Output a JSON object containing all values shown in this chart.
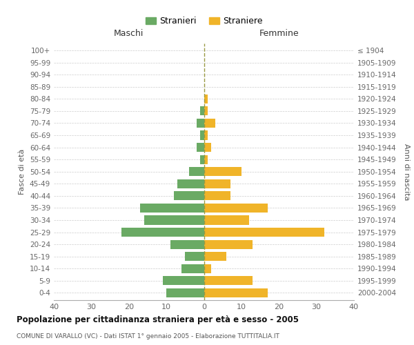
{
  "age_groups": [
    "0-4",
    "5-9",
    "10-14",
    "15-19",
    "20-24",
    "25-29",
    "30-34",
    "35-39",
    "40-44",
    "45-49",
    "50-54",
    "55-59",
    "60-64",
    "65-69",
    "70-74",
    "75-79",
    "80-84",
    "85-89",
    "90-94",
    "95-99",
    "100+"
  ],
  "birth_years": [
    "2000-2004",
    "1995-1999",
    "1990-1994",
    "1985-1989",
    "1980-1984",
    "1975-1979",
    "1970-1974",
    "1965-1969",
    "1960-1964",
    "1955-1959",
    "1950-1954",
    "1945-1949",
    "1940-1944",
    "1935-1939",
    "1930-1934",
    "1925-1929",
    "1920-1924",
    "1915-1919",
    "1910-1914",
    "1905-1909",
    "≤ 1904"
  ],
  "males": [
    10,
    11,
    6,
    5,
    9,
    22,
    16,
    17,
    8,
    7,
    4,
    1,
    2,
    1,
    2,
    1,
    0,
    0,
    0,
    0,
    0
  ],
  "females": [
    17,
    13,
    2,
    6,
    13,
    32,
    12,
    17,
    7,
    7,
    10,
    1,
    2,
    1,
    3,
    1,
    1,
    0,
    0,
    0,
    0
  ],
  "male_color": "#6aaa64",
  "female_color": "#f0b429",
  "grid_color": "#cccccc",
  "center_line_color": "#999944",
  "title": "Popolazione per cittadinanza straniera per età e sesso - 2005",
  "subtitle": "COMUNE DI VARALLO (VC) - Dati ISTAT 1° gennaio 2005 - Elaborazione TUTTITALIA.IT",
  "ylabel_left": "Fasce di età",
  "ylabel_right": "Anni di nascita",
  "xlabel_left": "Maschi",
  "xlabel_right": "Femmine",
  "legend_male": "Stranieri",
  "legend_female": "Straniere",
  "xlim": 40,
  "bar_height": 0.75
}
